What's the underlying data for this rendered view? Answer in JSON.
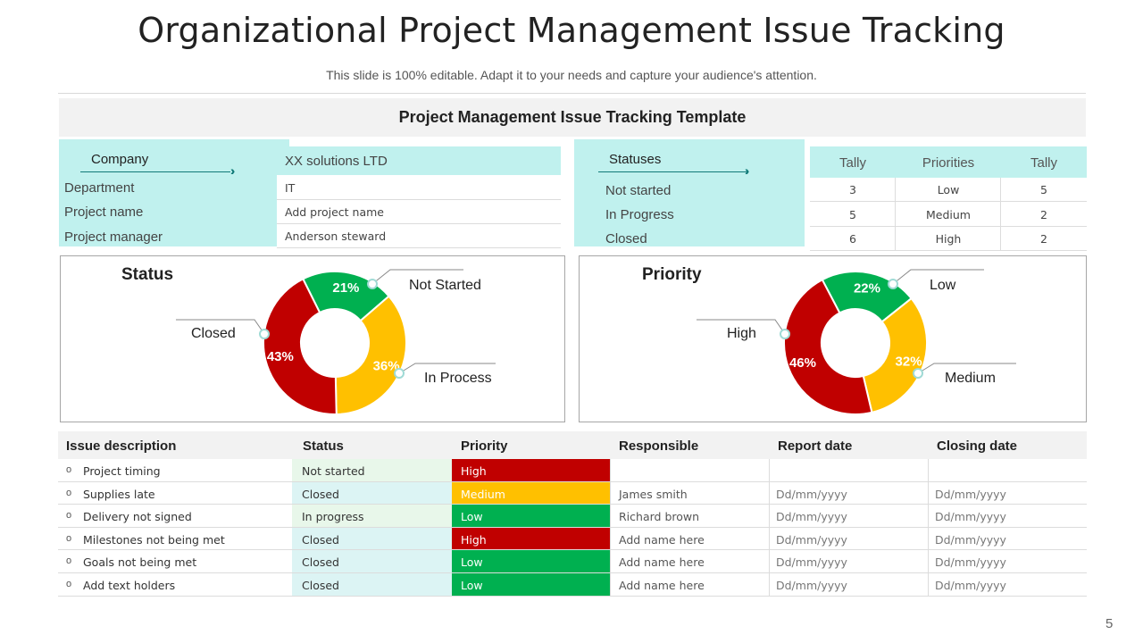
{
  "title": "Organizational Project Management Issue Tracking",
  "subtitle": "This slide is 100% editable. Adapt it to your needs and capture your audience's attention.",
  "template_title": "Project Management Issue Tracking Template",
  "company_panel": {
    "header_label": "Company",
    "header_value": "XX solutions LTD",
    "rows": [
      {
        "label": "Department",
        "value": "IT"
      },
      {
        "label": "Project name",
        "value": "Add project name"
      },
      {
        "label": "Project manager",
        "value": "Anderson steward"
      }
    ]
  },
  "statuses_panel": {
    "header_label": "Statuses",
    "items": [
      "Not started",
      "In Progress",
      "Closed"
    ]
  },
  "tally_table": {
    "headers": [
      "Tally",
      "Priorities",
      "Tally"
    ],
    "rows": [
      [
        "3",
        "Low",
        "5"
      ],
      [
        "5",
        "Medium",
        "2"
      ],
      [
        "6",
        "High",
        "2"
      ]
    ]
  },
  "colors": {
    "red": "#c00000",
    "amber": "#ffc000",
    "green": "#00b050",
    "teal_accent": "#117a78",
    "cyan_panel": "#c0f1ee"
  },
  "icons": {
    "arrow": "double-chevron-right-icon"
  },
  "chart_data": [
    {
      "type": "pie",
      "title": "Status",
      "slices": [
        {
          "label": "Not Started",
          "value": 21,
          "color": "#00b050",
          "pct_label": "21%"
        },
        {
          "label": "In Process",
          "value": 36,
          "color": "#ffc000",
          "pct_label": "36%"
        },
        {
          "label": "Closed",
          "value": 43,
          "color": "#c00000",
          "pct_label": "43%"
        }
      ]
    },
    {
      "type": "pie",
      "title": "Priority",
      "slices": [
        {
          "label": "Low",
          "value": 22,
          "color": "#00b050",
          "pct_label": "22%"
        },
        {
          "label": "Medium",
          "value": 32,
          "color": "#ffc000",
          "pct_label": "32%"
        },
        {
          "label": "High",
          "value": 46,
          "color": "#c00000",
          "pct_label": "46%"
        }
      ]
    }
  ],
  "issue_table": {
    "headers": [
      "Issue description",
      "Status",
      "Priority",
      "Responsible",
      "Report date",
      "Closing date"
    ],
    "rows": [
      {
        "desc": "Project timing",
        "status": "Not started",
        "priority": "High",
        "responsible": "",
        "report": "",
        "closing": ""
      },
      {
        "desc": "Supplies late",
        "status": "Closed",
        "priority": "Medium",
        "responsible": "James smith",
        "report": "Dd/mm/yyyy",
        "closing": "Dd/mm/yyyy"
      },
      {
        "desc": "Delivery not signed",
        "status": "In progress",
        "priority": "Low",
        "responsible": "Richard brown",
        "report": "Dd/mm/yyyy",
        "closing": "Dd/mm/yyyy"
      },
      {
        "desc": "Milestones not being met",
        "status": "Closed",
        "priority": "High",
        "responsible": "Add name here",
        "report": "Dd/mm/yyyy",
        "closing": "Dd/mm/yyyy"
      },
      {
        "desc": "Goals not being met",
        "status": "Closed",
        "priority": "Low",
        "responsible": "Add name here",
        "report": "Dd/mm/yyyy",
        "closing": "Dd/mm/yyyy"
      },
      {
        "desc": "Add text holders",
        "status": "Closed",
        "priority": "Low",
        "responsible": "Add name here",
        "report": "Dd/mm/yyyy",
        "closing": "Dd/mm/yyyy"
      }
    ]
  },
  "page_number": "5"
}
